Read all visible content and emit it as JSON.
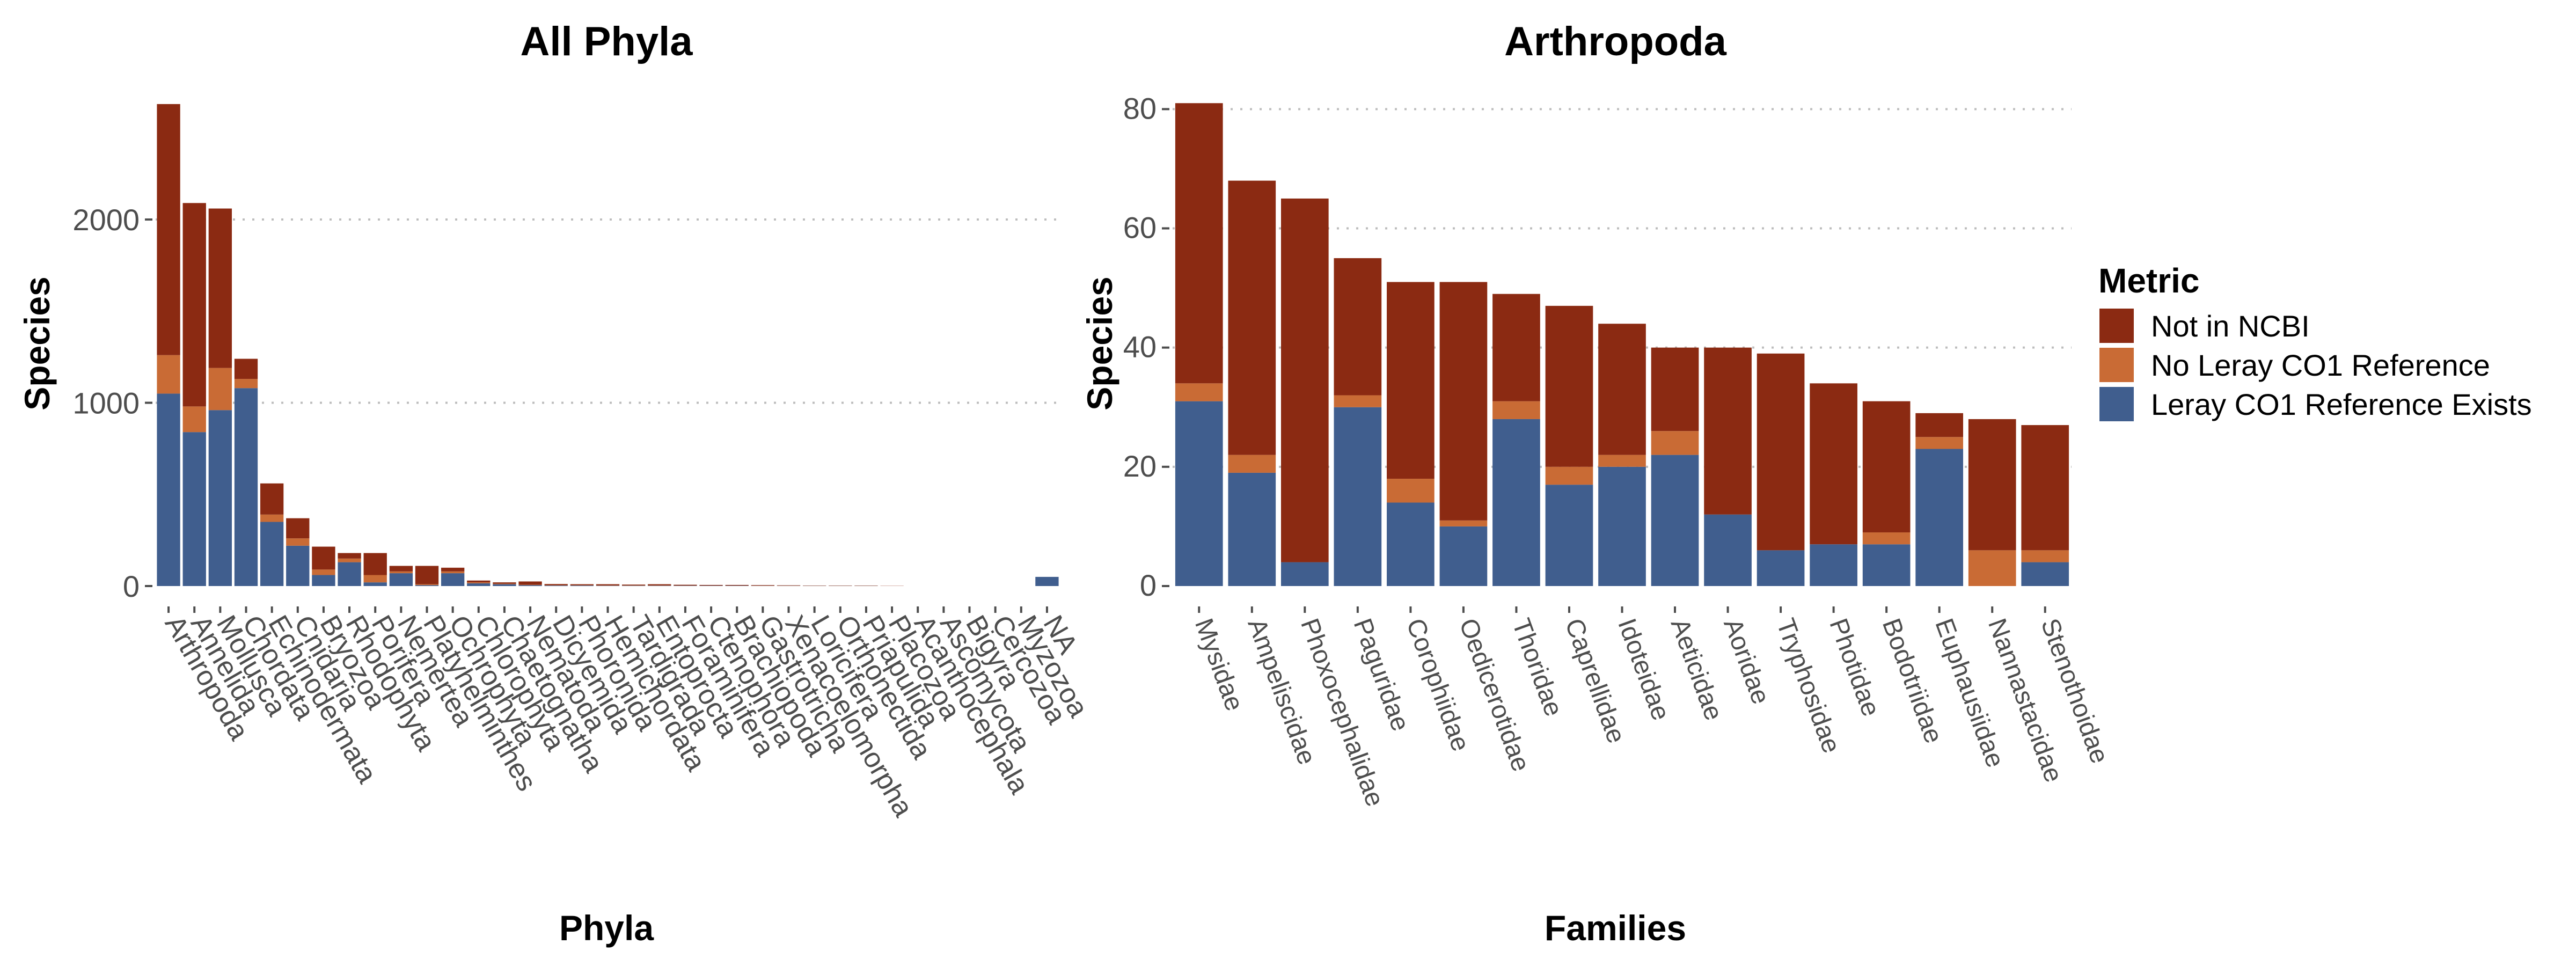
{
  "colors": {
    "not_in_ncbi": "#8B2A12",
    "no_leray": "#C96B35",
    "leray_exists": "#405E8E"
  },
  "legend": {
    "title": "Metric",
    "items": [
      {
        "label": "Not in NCBI",
        "color": "#8B2A12"
      },
      {
        "label": "No Leray CO1 Reference",
        "color": "#C96B35"
      },
      {
        "label": "Leray CO1 Reference Exists",
        "color": "#405E8E"
      }
    ]
  },
  "chart_data": [
    {
      "type": "bar",
      "stacked": true,
      "title": "All Phyla",
      "xlabel": "Phyla",
      "ylabel": "Species",
      "ylim": [
        0,
        2700
      ],
      "yticks": [
        0,
        1000,
        2000
      ],
      "grid": "horizontal dotted",
      "categories": [
        "Arthropoda",
        "Annelida",
        "Mollusca",
        "Chordata",
        "Echinodermata",
        "Cnidaria",
        "Bryozoa",
        "Rhodophyta",
        "Porifera",
        "Nemertea",
        "Platyhelminthes",
        "Ochrophyta",
        "Chlorophyta",
        "Chaetognatha",
        "Nematoda",
        "Dicyemida",
        "Phoronida",
        "Hemichordata",
        "Tardigrada",
        "Entoprocta",
        "Foraminifera",
        "Ctenophora",
        "Brachiopoda",
        "Gastrotricha",
        "Xenacoelomorpha",
        "Loricifera",
        "Orthonectida",
        "Priapulida",
        "Placozoa",
        "Acanthocephala",
        "Ascomycota",
        "Bigyra",
        "Cercozoa",
        "Myzozoa",
        "NA"
      ],
      "series": [
        {
          "name": "Leray CO1 Reference Exists",
          "values": [
            1050,
            840,
            960,
            1080,
            350,
            220,
            60,
            130,
            20,
            70,
            5,
            70,
            15,
            10,
            5,
            3,
            3,
            2,
            2,
            2,
            2,
            2,
            2,
            1,
            1,
            1,
            1,
            1,
            0,
            0,
            0,
            0,
            0,
            0,
            50
          ]
        },
        {
          "name": "No Leray CO1 Reference",
          "values": [
            210,
            140,
            230,
            50,
            40,
            40,
            30,
            20,
            40,
            10,
            5,
            10,
            5,
            3,
            2,
            2,
            2,
            2,
            2,
            2,
            1,
            1,
            1,
            1,
            1,
            1,
            1,
            1,
            0,
            0,
            0,
            0,
            0,
            0,
            0
          ]
        },
        {
          "name": "Not in NCBI",
          "values": [
            1370,
            1110,
            870,
            110,
            170,
            110,
            125,
            30,
            120,
            30,
            100,
            20,
            10,
            7,
            18,
            6,
            5,
            6,
            4,
            6,
            4,
            3,
            3,
            3,
            2,
            1,
            1,
            1,
            1,
            0,
            0,
            0,
            0,
            0,
            0
          ]
        }
      ]
    },
    {
      "type": "bar",
      "stacked": true,
      "title": "Arthropoda",
      "xlabel": "Families",
      "ylabel": "Species",
      "ylim": [
        0,
        83
      ],
      "yticks": [
        0,
        20,
        40,
        60,
        80
      ],
      "grid": "horizontal dotted",
      "categories": [
        "Mysidae",
        "Ampeliscidae",
        "Phoxocephalidae",
        "Paguridae",
        "Corophiidae",
        "Oedicerotidae",
        "Thoridae",
        "Caprellidae",
        "Idoteidae",
        "Aeticidae",
        "Aoridae",
        "Tryphosidae",
        "Photidae",
        "Bodotriidae",
        "Euphausiidae",
        "Nannastacidae",
        "Stenothoidae"
      ],
      "series": [
        {
          "name": "Leray CO1 Reference Exists",
          "values": [
            31,
            19,
            4,
            30,
            14,
            10,
            28,
            17,
            20,
            22,
            12,
            6,
            7,
            7,
            23,
            0,
            4
          ]
        },
        {
          "name": "No Leray CO1 Reference",
          "values": [
            3,
            3,
            0,
            2,
            4,
            1,
            3,
            3,
            2,
            4,
            0,
            0,
            0,
            2,
            2,
            6,
            2
          ]
        },
        {
          "name": "Not in NCBI",
          "values": [
            47,
            46,
            61,
            23,
            33,
            40,
            18,
            27,
            22,
            14,
            28,
            33,
            27,
            22,
            4,
            22,
            21
          ]
        }
      ]
    }
  ]
}
